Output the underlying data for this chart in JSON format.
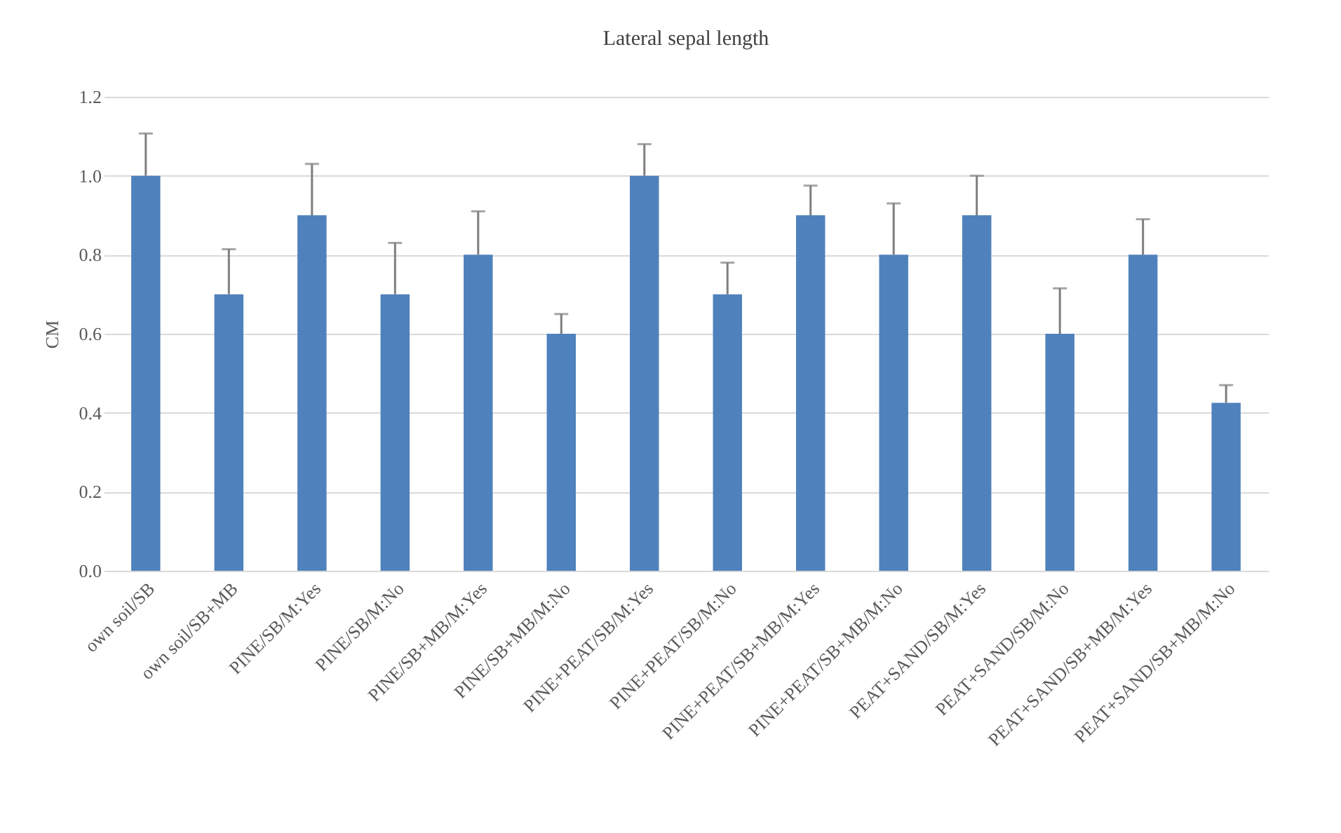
{
  "chart_data": {
    "type": "bar",
    "title": "Lateral sepal length",
    "ylabel": "CM",
    "categories": [
      "own soil/SB",
      "own soil/SB+MB",
      "PINE/SB/M:Yes",
      "PINE/SB/M:No",
      "PINE/SB+MB/M:Yes",
      "PINE/SB+MB/M:No",
      "PINE+PEAT/SB/M:Yes",
      "PINE+PEAT/SB/M:No",
      "PINE+PEAT/SB+MB/M:Yes",
      "PINE+PEAT/SB+MB/M:No",
      "PEAT+SAND/SB/M:Yes",
      "PEAT+SAND/SB/M:No",
      "PEAT+SAND/SB+MB/M:Yes",
      "PEAT+SAND/SB+MB/M:No"
    ],
    "series": [
      {
        "color": "#4f81bd",
        "values": [
          1.0,
          0.7,
          0.9,
          0.7,
          0.8,
          0.6,
          1.0,
          0.7,
          0.9,
          0.8,
          0.9,
          0.6,
          0.8,
          0.425
        ],
        "errors": [
          [
            1.0,
            1.107
          ],
          [
            0.7,
            0.814
          ],
          [
            0.9,
            1.03
          ],
          [
            0.7,
            0.83
          ],
          [
            0.8,
            0.91
          ],
          [
            0.6,
            0.65
          ],
          [
            1.0,
            1.08
          ],
          [
            0.7,
            0.78
          ],
          [
            0.9,
            0.975
          ],
          [
            0.8,
            0.93
          ],
          [
            0.9,
            1.0
          ],
          [
            0.6,
            0.715
          ],
          [
            0.8,
            0.89
          ],
          [
            0.425,
            0.47
          ]
        ]
      }
    ],
    "ylim": [
      0,
      1.2
    ],
    "yticks": [
      {
        "value": 0,
        "label": "0.0"
      },
      {
        "value": 0.2,
        "label": "0.2"
      },
      {
        "value": 0.4,
        "label": "0.4"
      },
      {
        "value": 0.6,
        "label": "0.6"
      },
      {
        "value": 0.8,
        "label": "0.8"
      },
      {
        "value": 1.0,
        "label": "1.0"
      },
      {
        "value": 1.2,
        "label": "1.2"
      }
    ],
    "grid": "y"
  }
}
